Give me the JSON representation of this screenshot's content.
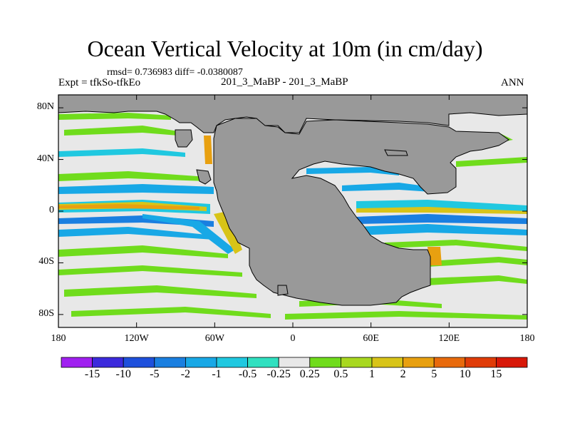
{
  "header": {
    "title": "Ocean Vertical Velocity at 10m (in cm/day)",
    "stats": "rmsd= 0.736983 diff= -0.0380087",
    "expt": "Expt = tfkSo-tfkEo",
    "runs": "201_3_MaBP - 201_3_MaBP",
    "season": "ANN"
  },
  "chart_data": {
    "type": "heatmap",
    "title": "Ocean Vertical Velocity at 10m (in cm/day)",
    "units": "cm/day",
    "x_ticks": [
      "180",
      "120W",
      "60W",
      "0",
      "60E",
      "120E",
      "180"
    ],
    "y_ticks": [
      "80N",
      "40N",
      "0",
      "40S",
      "80S"
    ],
    "xlim": [
      -180,
      180
    ],
    "ylim": [
      -90,
      90
    ],
    "colorbar": {
      "labels": [
        "-15",
        "-10",
        "-5",
        "-2",
        "-1",
        "-0.5",
        "-0.25",
        "0.25",
        "0.5",
        "1",
        "2",
        "5",
        "10",
        "15"
      ],
      "colors": [
        "#a020f0",
        "#3c2adc",
        "#1e50dc",
        "#1a7fe0",
        "#18a8e6",
        "#20c8e0",
        "#30e0c0",
        "#e8e8e8",
        "#70dc1c",
        "#a8d820",
        "#d8c418",
        "#e8a010",
        "#e86a0c",
        "#e03c08",
        "#d81808"
      ]
    },
    "land_color": "#999999",
    "background_color": "#e8e8e8"
  }
}
